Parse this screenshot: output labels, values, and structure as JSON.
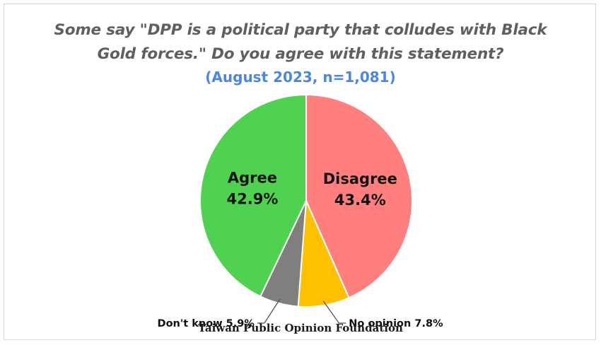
{
  "title_line1": "Some say \"DPP is a political party that colludes with Black",
  "title_line2": "Gold forces.\" Do you agree with this statement?",
  "subtitle": "(August 2023, n=1,081)",
  "source": "Taiwan Public Opinion Foundation",
  "chart_data": {
    "type": "pie",
    "title": "Some say \"DPP is a political party that colludes with Black Gold forces.\" Do you agree with this statement?",
    "subtitle": "(August 2023, n=1,081)",
    "slices": [
      {
        "label": "Disagree",
        "value": 43.4,
        "value_label": "43.4%",
        "color": "#ff7f7f"
      },
      {
        "label": "No opinion",
        "value": 7.8,
        "value_label": "7.8%",
        "color": "#ffc000"
      },
      {
        "label": "Don't know",
        "value": 5.9,
        "value_label": "5.9%",
        "color": "#7f7f7f"
      },
      {
        "label": "Agree",
        "value": 42.9,
        "value_label": "42.9%",
        "color": "#4fd24f"
      }
    ],
    "start": "12 o'clock",
    "direction": "clockwise",
    "label_placement": {
      "Disagree": "inside",
      "Agree": "inside",
      "No opinion": "outside-right-callout",
      "Don't know": "outside-left-callout"
    }
  }
}
